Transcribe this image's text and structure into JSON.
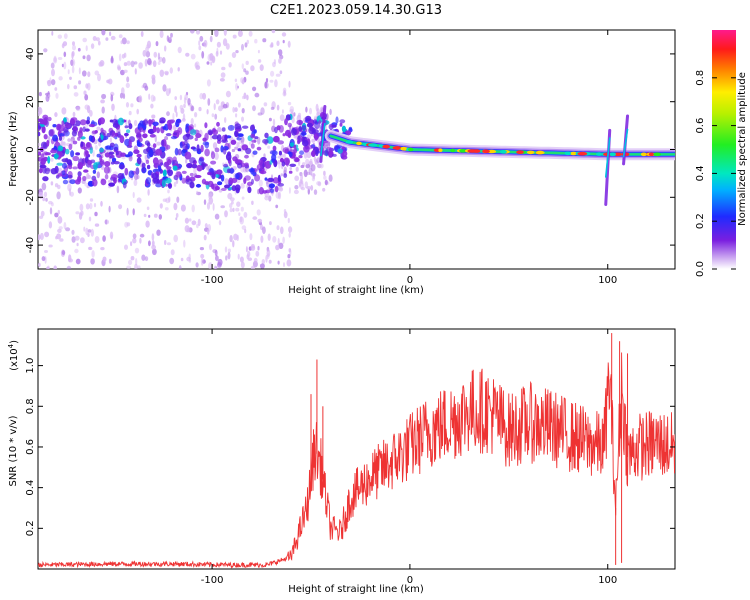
{
  "title": "C2E1.2023.059.14.30.G13",
  "chart_data": [
    {
      "type": "heatmap",
      "xlabel": "Height of straight line (km)",
      "ylabel": "Frequency (Hz)",
      "xlim": [
        -188,
        134
      ],
      "ylim": [
        -50,
        50
      ],
      "xticks": [
        -100,
        0,
        100
      ],
      "yticks": [
        -40,
        -20,
        0,
        20,
        40
      ],
      "colorbar": {
        "label": "Normalized spectral amplitude",
        "range": [
          0,
          1
        ],
        "ticks": [
          0.0,
          0.2,
          0.4,
          0.6,
          0.8
        ]
      },
      "ridge": [
        {
          "x": -188,
          "y": 0
        },
        {
          "x": -100,
          "y": -2
        },
        {
          "x": -70,
          "y": -6
        },
        {
          "x": -55,
          "y": 4
        },
        {
          "x": -45,
          "y": 7
        },
        {
          "x": -30,
          "y": 3
        },
        {
          "x": 0,
          "y": 0
        },
        {
          "x": 50,
          "y": -1
        },
        {
          "x": 100,
          "y": -2
        },
        {
          "x": 134,
          "y": -2
        }
      ],
      "features": [
        {
          "x": -45,
          "y_low": -5,
          "y_high": 18
        },
        {
          "x": 99,
          "y_low": -23,
          "y_high": 8
        },
        {
          "x": 108,
          "y_low": -6,
          "y_high": 14
        }
      ]
    },
    {
      "type": "line",
      "xlabel": "Height of straight line (km)",
      "ylabel": "SNR (10 * v/v)",
      "y_multiplier": "(x10",
      "y_multiplier_exp": "4",
      "y_multiplier_close": ")",
      "xlim": [
        -188,
        134
      ],
      "ylim": [
        0,
        1.18
      ],
      "xticks": [
        -100,
        0,
        100
      ],
      "yticks": [
        0.2,
        0.4,
        0.6,
        0.8,
        1.0
      ],
      "series": [
        {
          "color": "#ee3333",
          "points": [
            [
              -188,
              0.02
            ],
            [
              -150,
              0.025
            ],
            [
              -120,
              0.025
            ],
            [
              -90,
              0.02
            ],
            [
              -72,
              0.02
            ],
            [
              -60,
              0.06
            ],
            [
              -52,
              0.3
            ],
            [
              -48,
              0.6
            ],
            [
              -45,
              0.5
            ],
            [
              -40,
              0.2
            ],
            [
              -35,
              0.18
            ],
            [
              -30,
              0.35
            ],
            [
              -20,
              0.45
            ],
            [
              -10,
              0.52
            ],
            [
              0,
              0.6
            ],
            [
              10,
              0.68
            ],
            [
              20,
              0.72
            ],
            [
              30,
              0.78
            ],
            [
              40,
              0.78
            ],
            [
              50,
              0.68
            ],
            [
              60,
              0.72
            ],
            [
              70,
              0.7
            ],
            [
              80,
              0.66
            ],
            [
              90,
              0.62
            ],
            [
              98,
              0.6
            ],
            [
              101,
              0.95
            ],
            [
              104,
              0.3
            ],
            [
              107,
              0.9
            ],
            [
              110,
              0.55
            ],
            [
              115,
              0.6
            ],
            [
              125,
              0.62
            ],
            [
              134,
              0.6
            ]
          ],
          "spikes": [
            {
              "x": -47,
              "y": 1.03
            },
            {
              "x": -50,
              "y": 0.86
            },
            {
              "x": -44,
              "y": 0.8
            },
            {
              "x": 102,
              "y": 1.16
            },
            {
              "x": 106,
              "y": 1.12
            },
            {
              "x": 110,
              "y": 1.06
            },
            {
              "x": 104,
              "y": 0.02
            },
            {
              "x": 107,
              "y": 0.03
            }
          ]
        }
      ]
    }
  ]
}
